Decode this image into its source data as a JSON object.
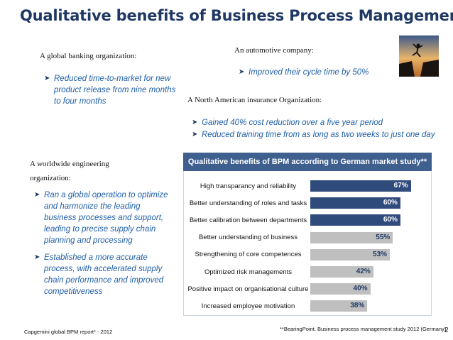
{
  "title": "Qualitative benefits of Business Process Management",
  "banking": {
    "heading": "A global banking organization:",
    "bullets": [
      "Reduced time-to-market for new product release from nine months to four months"
    ]
  },
  "automotive": {
    "heading": "An automotive company:",
    "bullets": [
      "Improved their cycle time by 50%"
    ]
  },
  "insurance": {
    "heading": "A North American insurance Organization:",
    "bullets": [
      "Gained 40% cost reduction over a five year period",
      "Reduced training time from as long as two weeks to just one day"
    ]
  },
  "engineering": {
    "heading": "A worldwide engineering organization:",
    "bullets": [
      "Ran a global operation to optimize and harmonize the leading business processes and support, leading to precise supply chain planning and processing",
      "Established a more accurate process, with accelerated supply chain performance and improved competitiveness"
    ]
  },
  "chart_data": {
    "type": "bar",
    "orientation": "horizontal",
    "title": "Qualitative benefits of BPM according to German market study**",
    "categories": [
      "High transparancy and reliability",
      "Better understanding of roles and tasks",
      "Better calibration between departments",
      "Better understanding of business",
      "Strengthening of core competences",
      "Optimized risk managements",
      "Positive impact on organisational culture",
      "Increased employee motivation"
    ],
    "values": [
      67,
      60,
      60,
      55,
      53,
      42,
      40,
      38
    ],
    "value_labels": [
      "67%",
      "60%",
      "60%",
      "55%",
      "53%",
      "42%",
      "40%",
      "38%"
    ],
    "xlim": [
      0,
      70
    ],
    "grid": false,
    "colors": {
      "dark": "#2f4b7c",
      "light": "#bfbfbf",
      "dark_text": "#ffffff",
      "light_text": "#1f3864"
    },
    "dark_count": 3
  },
  "footer": {
    "left": "Capgemini global BPM report* - 2012",
    "right": "**BearingPoint. Business process management study 2012 (Germany)",
    "page": "2"
  },
  "colors": {
    "title": "#1f3864",
    "bullet_text": "#1f5fa8",
    "header_bg": "#3f5f8f"
  }
}
